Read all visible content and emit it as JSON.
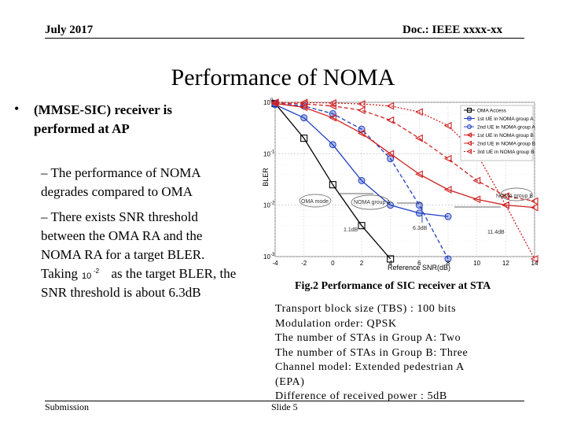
{
  "header": {
    "date": "July 2017",
    "doc": "Doc.: IEEE xxxx-xx"
  },
  "title": "Performance of NOMA",
  "bullet_char": "•",
  "bullets": {
    "main": "(MMSE-SIC) receiver is performed at AP",
    "sub1": "– The performance of NOMA degrades compared to OMA",
    "sub2_a": "– There exists SNR threshold between the OMA RA and the NOMA RA for a target BLER. Taking",
    "sub2_b": "as the target BLER, the SNR threshold is about 6.3dB",
    "inline_value": "10",
    "inline_exp": "-2"
  },
  "figure": {
    "caption": "Fig.2 Performance of SIC receiver at STA",
    "params": [
      "Transport block size (TBS) : 100 bits",
      "Modulation order: QPSK",
      "The number of STAs in Group A: Two",
      "The number of STAs in Group B: Three",
      "Channel model: Extended pedestrian A",
      "(EPA)",
      "Difference of received power : 5dB"
    ]
  },
  "footer": {
    "submission": "Submission",
    "slide": "Slide 5"
  },
  "chart_data": {
    "type": "line",
    "xlabel": "Reference SNR(dB)",
    "ylabel": "BLER",
    "xlim": [
      -4,
      14
    ],
    "ylim_log10": [
      -3,
      0
    ],
    "x_ticks": [
      "-4",
      "-2",
      "0",
      "2",
      "4",
      "6",
      "8",
      "10",
      "12",
      "14"
    ],
    "y_ticks": [
      {
        "base": "10",
        "exp": "0"
      },
      {
        "base": "10",
        "exp": "-1"
      },
      {
        "base": "10",
        "exp": "-2"
      },
      {
        "base": "10",
        "exp": "-3"
      }
    ],
    "annotations": [
      "OMA mode",
      "NOMA group A",
      "NOMA group B",
      "1.1dB",
      "6.3dB",
      "11.4dB"
    ],
    "series": [
      {
        "name": "OMA Access",
        "color": "#000000",
        "marker": "square",
        "dash": "solid",
        "x": [
          -4,
          -2,
          0,
          2,
          4
        ],
        "y": [
          0.95,
          0.2,
          0.025,
          0.004,
          0.0009
        ]
      },
      {
        "name": "1st UE in NOMA group A",
        "color": "#2040c0",
        "marker": "circle",
        "dash": "solid",
        "x": [
          -4,
          -2,
          0,
          2,
          4,
          6,
          8
        ],
        "y": [
          0.9,
          0.5,
          0.15,
          0.03,
          0.01,
          0.007,
          0.006
        ]
      },
      {
        "name": "2nd UE in NOMA group A",
        "color": "#2040c0",
        "marker": "circle",
        "dash": "dashed",
        "x": [
          -4,
          -2,
          0,
          2,
          4,
          6,
          8
        ],
        "y": [
          0.95,
          0.85,
          0.6,
          0.3,
          0.08,
          0.01,
          0.0009
        ]
      },
      {
        "name": "1st UE in NOMA group B",
        "color": "#d02020",
        "marker": "triangle",
        "dash": "solid",
        "x": [
          -4,
          -2,
          0,
          2,
          4,
          6,
          8,
          10,
          12,
          14
        ],
        "y": [
          0.95,
          0.8,
          0.5,
          0.25,
          0.1,
          0.04,
          0.02,
          0.013,
          0.01,
          0.009
        ]
      },
      {
        "name": "2nd UE in NOMA group B",
        "color": "#d02020",
        "marker": "triangle",
        "dash": "dashed",
        "x": [
          -4,
          -2,
          0,
          2,
          4,
          6,
          8,
          10,
          12,
          14
        ],
        "y": [
          0.97,
          0.93,
          0.85,
          0.7,
          0.45,
          0.2,
          0.08,
          0.03,
          0.015,
          0.012
        ]
      },
      {
        "name": "3rd UE in NOMA group B",
        "color": "#d02020",
        "marker": "triangle",
        "dash": "dotted",
        "x": [
          -4,
          -2,
          0,
          2,
          4,
          6,
          8,
          10,
          12,
          14
        ],
        "y": [
          1.0,
          0.99,
          0.97,
          0.93,
          0.85,
          0.65,
          0.35,
          0.1,
          0.01,
          0.0009
        ]
      }
    ]
  }
}
